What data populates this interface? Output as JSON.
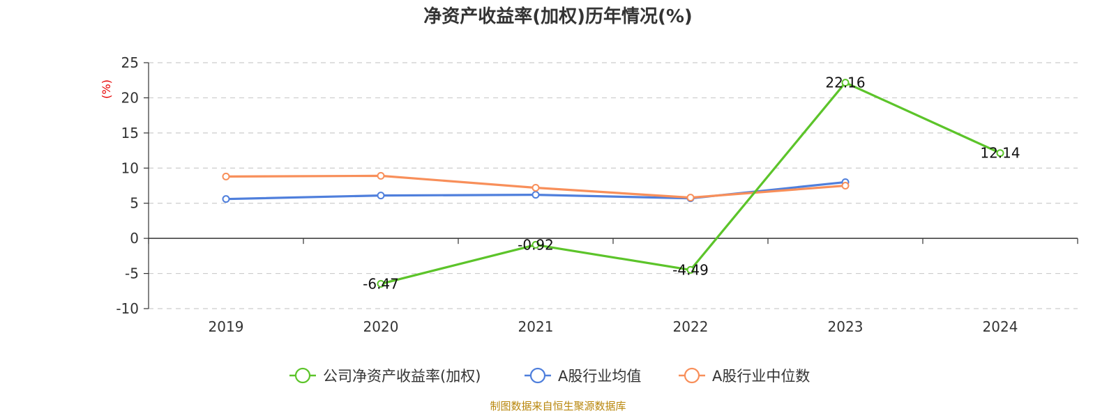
{
  "chart_data": {
    "type": "line",
    "title": "净资产收益率(加权)历年情况(%)",
    "ylabel": "(%)",
    "xlabel": "",
    "categories": [
      "2019",
      "2020",
      "2021",
      "2022",
      "2023",
      "2024"
    ],
    "ylim": [
      -10,
      25
    ],
    "yticks": [
      25,
      20,
      15,
      10,
      5,
      0,
      -5,
      -10
    ],
    "grid": true,
    "legend_position": "bottom",
    "series": [
      {
        "name": "公司净资产收益率(加权)",
        "color": "#5cc42a",
        "values": [
          null,
          -6.47,
          -0.92,
          -4.49,
          22.16,
          12.14
        ],
        "data_labels": [
          null,
          "-6.47",
          "-0.92",
          "-4.49",
          "22.16",
          "12.14"
        ]
      },
      {
        "name": "A股行业均值",
        "color": "#4f7fdc",
        "values": [
          5.6,
          6.1,
          6.2,
          5.7,
          8.0,
          null
        ]
      },
      {
        "name": "A股行业中位数",
        "color": "#f88f5a",
        "values": [
          8.8,
          8.9,
          7.2,
          5.8,
          7.5,
          null
        ]
      }
    ],
    "source": "制图数据来自恒生聚源数据库"
  }
}
